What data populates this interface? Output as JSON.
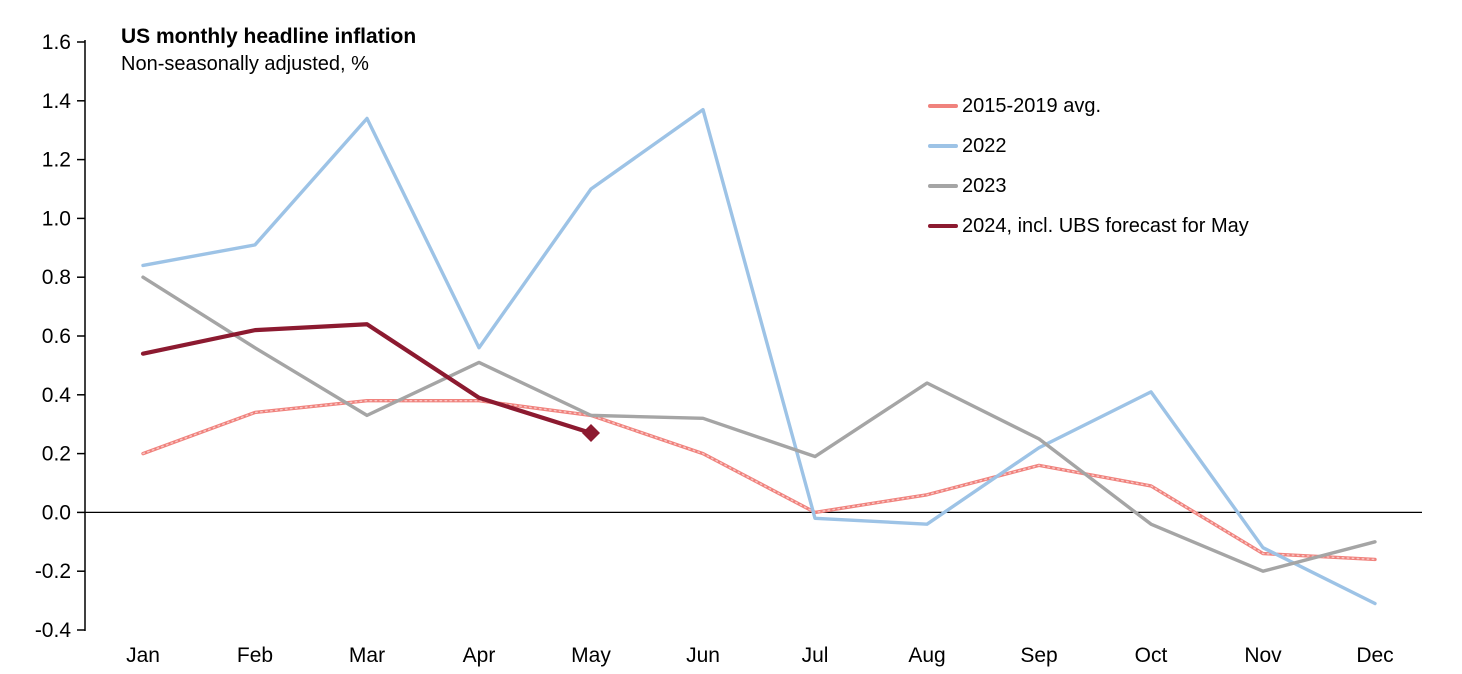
{
  "title": "US monthly headline inflation",
  "subtitle": "Non-seasonally adjusted, %",
  "chart_data": {
    "type": "line",
    "title": "US monthly headline inflation",
    "subtitle": "Non-seasonally adjusted, %",
    "categories": [
      "Jan",
      "Feb",
      "Mar",
      "Apr",
      "May",
      "Jun",
      "Jul",
      "Aug",
      "Sep",
      "Oct",
      "Nov",
      "Dec"
    ],
    "ylim": [
      -0.4,
      1.6
    ],
    "y_step": 0.2,
    "grid": false,
    "legend_position": "top-right",
    "series": [
      {
        "name": "2015-2019 avg.",
        "color": "#F0827D",
        "texture": "dotted",
        "values": [
          0.2,
          0.34,
          0.38,
          0.38,
          0.33,
          0.2,
          0.0,
          0.06,
          0.16,
          0.09,
          -0.14,
          -0.16
        ]
      },
      {
        "name": "2022",
        "color": "#9DC3E6",
        "values": [
          0.84,
          0.91,
          1.34,
          0.56,
          1.1,
          1.37,
          -0.02,
          -0.04,
          0.22,
          0.41,
          -0.12,
          -0.31
        ]
      },
      {
        "name": "2023",
        "color": "#A5A5A5",
        "values": [
          0.8,
          0.56,
          0.33,
          0.51,
          0.33,
          0.32,
          0.19,
          0.44,
          0.25,
          -0.04,
          -0.2,
          -0.1
        ]
      },
      {
        "name": "2024, incl. UBS forecast for May",
        "color": "#8C1A30",
        "marker_end": "diamond",
        "values": [
          0.54,
          0.62,
          0.64,
          0.39,
          0.27
        ]
      }
    ]
  }
}
